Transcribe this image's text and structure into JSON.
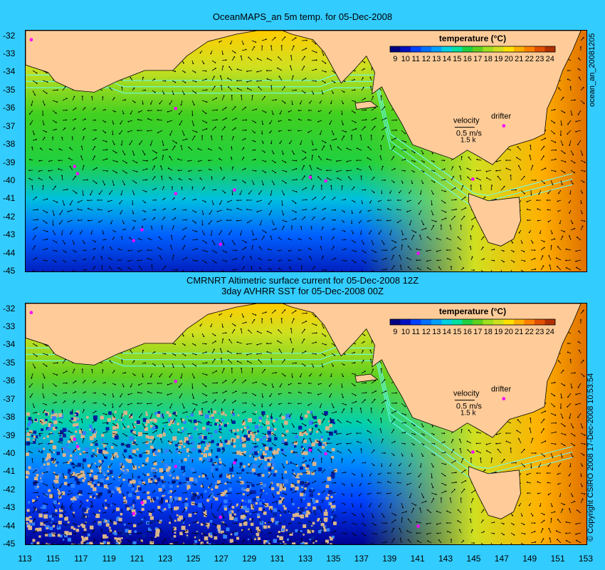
{
  "top_panel": {
    "title": "OceanMAPS_an 5m temp. for 05-Dec-2008",
    "side_label": "ocean_an_20081205"
  },
  "bottom_panel": {
    "title_line1": "CMRNRT Altimetric surface current for 05-Dec-2008 12Z",
    "title_line2": "3day AVHRR SST for 05-Dec-2008 00Z",
    "side_label": "© Copyright CSIRO 2008  17-Dec-2008 10:53:54"
  },
  "colorbar": {
    "title": "temperature (°C)",
    "ticks": [
      "9",
      "10",
      "11",
      "12",
      "13",
      "14",
      "15",
      "16",
      "17",
      "18",
      "19",
      "20",
      "21",
      "22",
      "23",
      "24"
    ],
    "colors": [
      "#000080",
      "#0010c0",
      "#0040ff",
      "#0070ff",
      "#00a0ff",
      "#00d0e0",
      "#00e0a0",
      "#20d040",
      "#60d020",
      "#a0e020",
      "#d0e020",
      "#ffe000",
      "#ffb000",
      "#ff8000",
      "#e05000",
      "#b03000"
    ]
  },
  "legend": {
    "velocity_label": "velocity",
    "speed_label": "0.5 m/s",
    "knots_label": "1.5 k",
    "drifter_label": "drifter"
  },
  "y_ticks": [
    "-32",
    "-33",
    "-34",
    "-35",
    "-36",
    "-37",
    "-38",
    "-39",
    "-40",
    "-41",
    "-42",
    "-43",
    "-44",
    "-45"
  ],
  "x_ticks": [
    "113",
    "115",
    "117",
    "119",
    "121",
    "123",
    "125",
    "127",
    "129",
    "131",
    "133",
    "135",
    "137",
    "139",
    "141",
    "143",
    "145",
    "147",
    "149",
    "151",
    "153"
  ],
  "map_colors": {
    "background": "#33ccff",
    "land": "#ffcc99",
    "land_brown": "#d9b48a",
    "bathymetry": "#66ffff",
    "arrow": "#000000",
    "drifter": "#ff00ff"
  }
}
